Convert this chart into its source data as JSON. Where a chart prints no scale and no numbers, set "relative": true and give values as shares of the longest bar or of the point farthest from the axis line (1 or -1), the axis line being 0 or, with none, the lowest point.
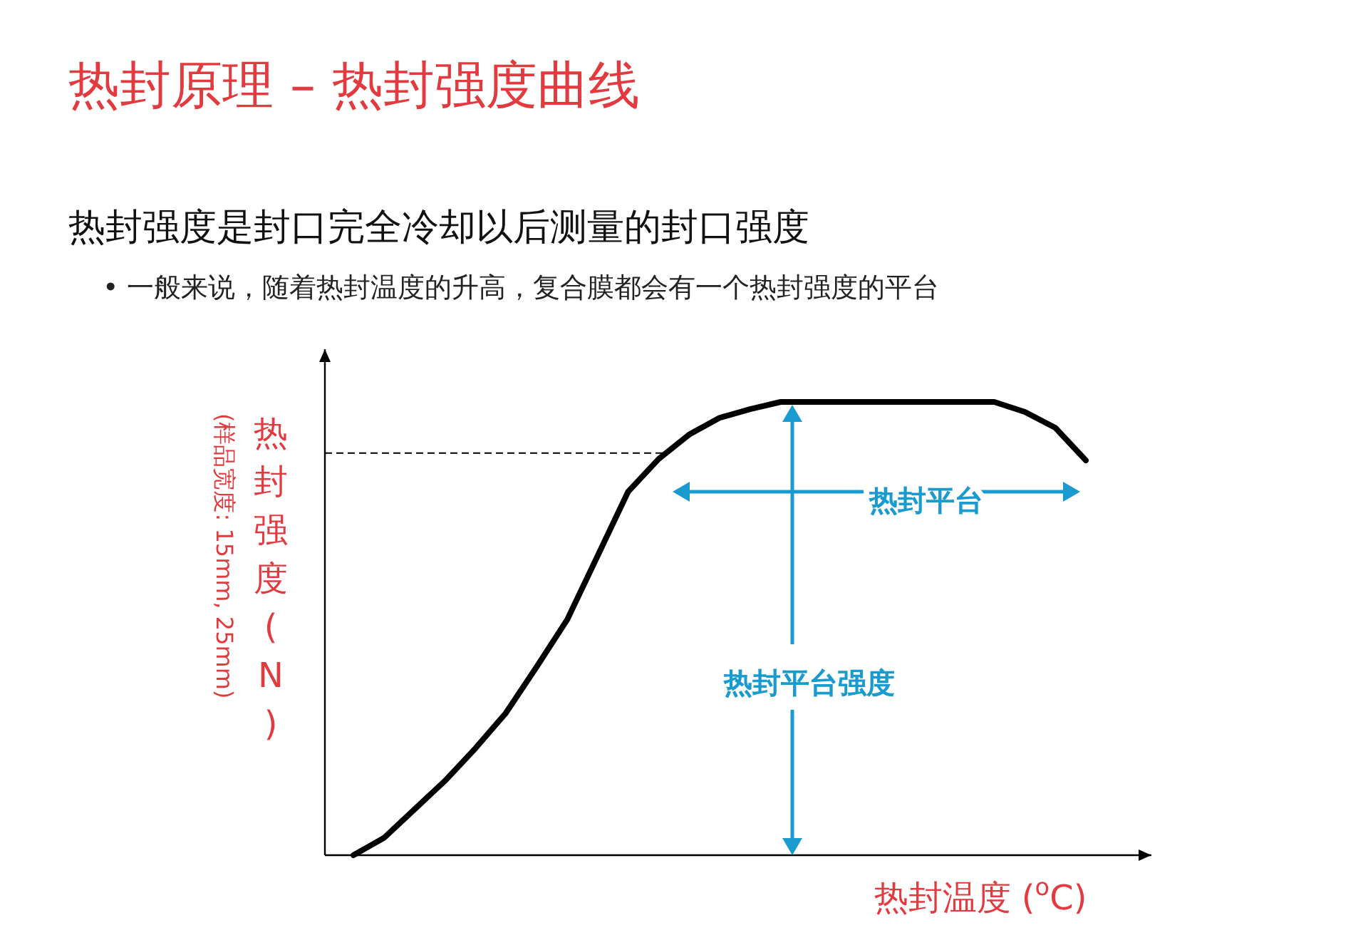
{
  "chart_data": {
    "type": "line",
    "relative": true,
    "title": "热封原理 – 热封强度曲线",
    "subtitle": "热封强度是封口完全冷却以后测量的封口强度",
    "xlabel": "热封温度 ($^{o}$C)",
    "ylabel": "热封强度 (N)",
    "annotations": [
      "• 一般来说，随着热封温度的升高，复合膜都会有一个热封强度的平台",
      "(样品宽度: 15mm, 25mm)",
      "热封平台",
      "热封平台强度"
    ],
    "categories": [
      null,
      null,
      null,
      null,
      null,
      null,
      null,
      null,
      null,
      null,
      null,
      null,
      null,
      null,
      null,
      null,
      null,
      null,
      null,
      null,
      null,
      null,
      null,
      null,
      null
    ],
    "series": [
      {
        "color": "#000000",
        "values": [
          0,
          0.038,
          0.101,
          0.164,
          0.236,
          0.314,
          0.415,
          0.519,
          0.66,
          0.802,
          0.874,
          0.928,
          0.965,
          0.984,
          1,
          1,
          1,
          1,
          1,
          1,
          1,
          1,
          0.978,
          0.943,
          0.871
        ]
      }
    ],
    "ref_lines": [
      {
        "axis": "y",
        "value": 0.887,
        "color": "#000000",
        "line_style": "dashed"
      }
    ],
    "marker": "none",
    "line_style": "solid",
    "tick_labels": false
  }
}
